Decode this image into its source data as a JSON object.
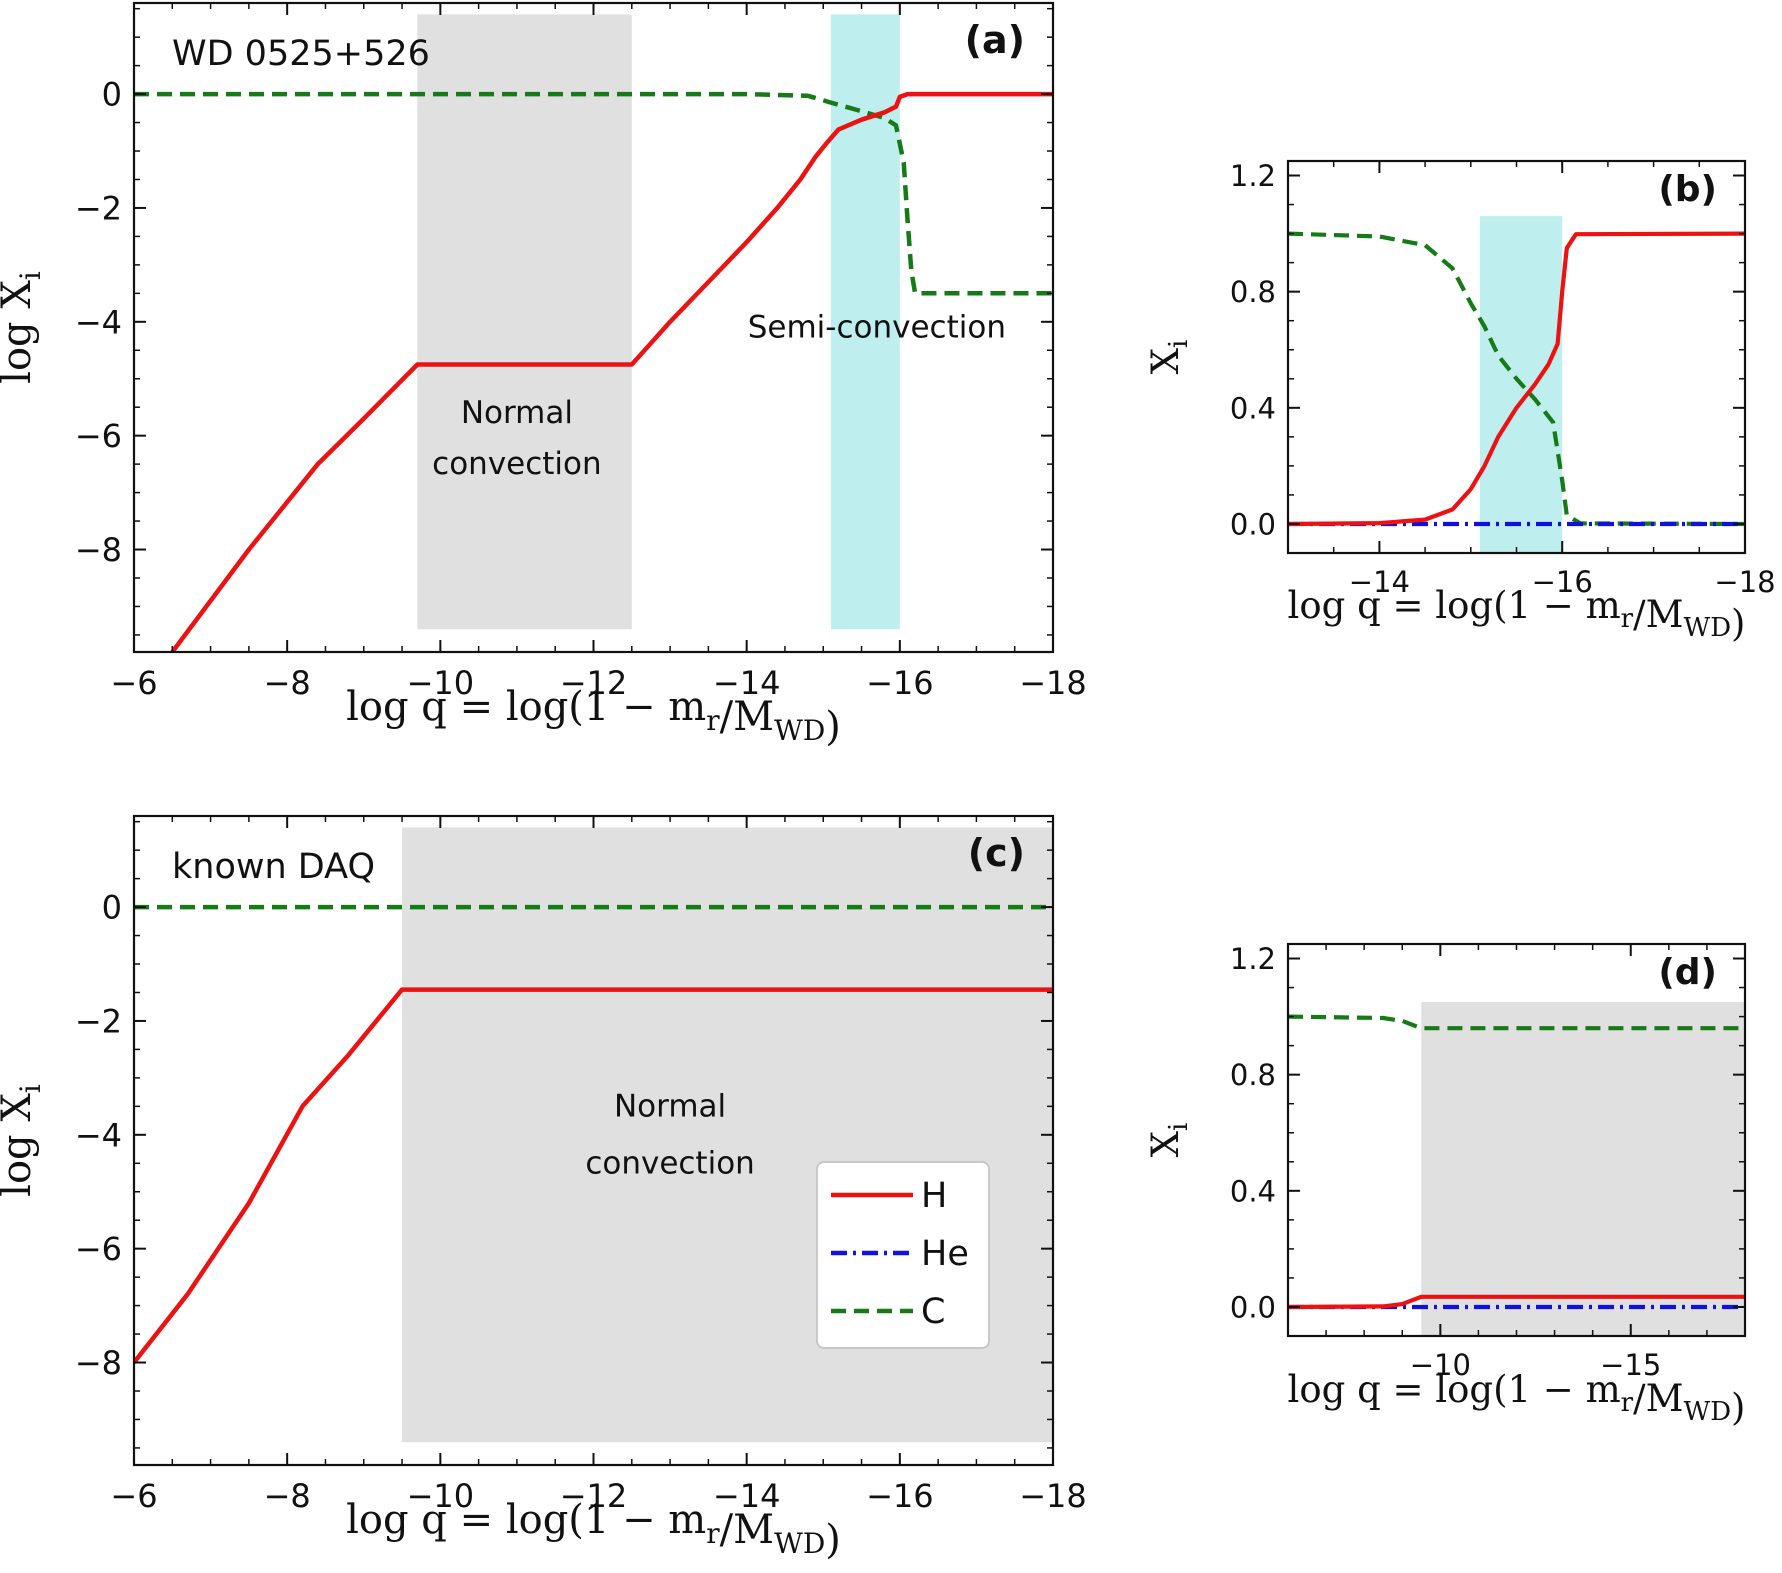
{
  "colors": {
    "H": "#ee1111",
    "He": "#1111dd",
    "C": "#167a16",
    "normal_convection": "#e0e0e0",
    "semi_convection": "#bfeeee",
    "axes": "#111111"
  },
  "legend": {
    "placement": "lower-right of panel (c)",
    "entries": [
      "H",
      "He",
      "C"
    ]
  },
  "chart_data": [
    {
      "panel": "(a)",
      "type": "line",
      "annotation": "WD 0525+526",
      "xlabel": "log q = log(1 − m_r/M_WD)",
      "ylabel": "log X_i",
      "xlim": [
        -6,
        -18
      ],
      "ylim": [
        -9.8,
        1.6
      ],
      "xticks": [
        "−6",
        "−8",
        "−10",
        "−12",
        "−14",
        "−16",
        "−18"
      ],
      "yticks": [
        "0",
        "−2",
        "−4",
        "−6",
        "−8"
      ],
      "xtick_values": [
        -6,
        -8,
        -10,
        -12,
        -14,
        -16,
        -18
      ],
      "ytick_values": [
        0,
        -2,
        -4,
        -6,
        -8
      ],
      "grid": false,
      "shaded_regions": [
        {
          "label": "Normal convection",
          "x": [
            -9.7,
            -12.5
          ],
          "y": [
            -9.4,
            1.4
          ],
          "kind": "normal"
        },
        {
          "label": "Semi-convection",
          "x": [
            -15.1,
            -16.0
          ],
          "y": [
            -9.4,
            1.4
          ],
          "kind": "semi"
        }
      ],
      "region_labels": [
        {
          "lines": [
            "Normal",
            "convection"
          ],
          "x": -11.0,
          "y": [
            -5.6,
            -6.5
          ]
        },
        {
          "lines": [
            "Semi-convection"
          ],
          "x": -15.7,
          "y": [
            -4.1
          ]
        }
      ],
      "series": [
        {
          "name": "H",
          "style": "solid",
          "points": [
            [
              -6.5,
              -9.8
            ],
            [
              -7.5,
              -8.0
            ],
            [
              -8.4,
              -6.5
            ],
            [
              -9.0,
              -5.7
            ],
            [
              -9.7,
              -4.75
            ],
            [
              -12.5,
              -4.75
            ],
            [
              -13.0,
              -4.0
            ],
            [
              -13.5,
              -3.3
            ],
            [
              -14.0,
              -2.6
            ],
            [
              -14.4,
              -2.0
            ],
            [
              -14.7,
              -1.5
            ],
            [
              -14.9,
              -1.1
            ],
            [
              -15.05,
              -0.85
            ],
            [
              -15.2,
              -0.62
            ],
            [
              -15.5,
              -0.45
            ],
            [
              -15.8,
              -0.32
            ],
            [
              -15.95,
              -0.22
            ],
            [
              -16.0,
              -0.05
            ],
            [
              -16.1,
              0
            ],
            [
              -18,
              0
            ]
          ]
        },
        {
          "name": "C",
          "style": "dashed",
          "points": [
            [
              -6,
              0
            ],
            [
              -14.0,
              0
            ],
            [
              -14.8,
              -0.03
            ],
            [
              -15.1,
              -0.15
            ],
            [
              -15.5,
              -0.3
            ],
            [
              -15.8,
              -0.42
            ],
            [
              -15.95,
              -0.55
            ],
            [
              -16.05,
              -1.2
            ],
            [
              -16.1,
              -2.2
            ],
            [
              -16.15,
              -3.1
            ],
            [
              -16.2,
              -3.5
            ],
            [
              -18,
              -3.5
            ]
          ]
        }
      ]
    },
    {
      "panel": "(b)",
      "type": "line",
      "xlabel": "log q = log(1 − m_r/M_WD)",
      "ylabel": "X_i",
      "xlim": [
        -13,
        -18
      ],
      "ylim": [
        -0.1,
        1.25
      ],
      "xticks": [
        "−14",
        "−16",
        "−18"
      ],
      "yticks": [
        "0.0",
        "0.4",
        "0.8",
        "1.2"
      ],
      "xtick_values": [
        -14,
        -16,
        -18
      ],
      "ytick_values": [
        0.0,
        0.4,
        0.8,
        1.2
      ],
      "grid": false,
      "shaded_regions": [
        {
          "x": [
            -15.1,
            -16.0
          ],
          "y": [
            -0.1,
            1.06
          ],
          "kind": "semi"
        }
      ],
      "series": [
        {
          "name": "H",
          "style": "solid",
          "points": [
            [
              -13,
              0
            ],
            [
              -14.0,
              0.003
            ],
            [
              -14.5,
              0.015
            ],
            [
              -14.8,
              0.05
            ],
            [
              -15.0,
              0.12
            ],
            [
              -15.15,
              0.2
            ],
            [
              -15.3,
              0.3
            ],
            [
              -15.5,
              0.4
            ],
            [
              -15.7,
              0.48
            ],
            [
              -15.85,
              0.55
            ],
            [
              -15.95,
              0.62
            ],
            [
              -16.0,
              0.8
            ],
            [
              -16.05,
              0.95
            ],
            [
              -16.15,
              0.998
            ],
            [
              -18,
              1.0
            ]
          ]
        },
        {
          "name": "He",
          "style": "dashdot",
          "points": [
            [
              -13,
              0
            ],
            [
              -18,
              0
            ]
          ]
        },
        {
          "name": "C",
          "style": "dashed",
          "points": [
            [
              -13,
              1.0
            ],
            [
              -14.0,
              0.99
            ],
            [
              -14.5,
              0.96
            ],
            [
              -14.8,
              0.88
            ],
            [
              -15.0,
              0.76
            ],
            [
              -15.15,
              0.68
            ],
            [
              -15.3,
              0.58
            ],
            [
              -15.5,
              0.5
            ],
            [
              -15.7,
              0.43
            ],
            [
              -15.9,
              0.35
            ],
            [
              -16.0,
              0.15
            ],
            [
              -16.05,
              0.03
            ],
            [
              -16.2,
              0.002
            ],
            [
              -18,
              0
            ]
          ]
        }
      ]
    },
    {
      "panel": "(c)",
      "type": "line",
      "annotation": "known DAQ",
      "xlabel": "log q = log(1 − m_r/M_WD)",
      "ylabel": "log X_i",
      "xlim": [
        -6,
        -18
      ],
      "ylim": [
        -9.8,
        1.6
      ],
      "xticks": [
        "−6",
        "−8",
        "−10",
        "−12",
        "−14",
        "−16",
        "−18"
      ],
      "yticks": [
        "0",
        "−2",
        "−4",
        "−6",
        "−8"
      ],
      "xtick_values": [
        -6,
        -8,
        -10,
        -12,
        -14,
        -16,
        -18
      ],
      "ytick_values": [
        0,
        -2,
        -4,
        -6,
        -8
      ],
      "grid": false,
      "shaded_regions": [
        {
          "label": "Normal convection",
          "x": [
            -9.5,
            -18
          ],
          "y": [
            -9.4,
            1.4
          ],
          "kind": "normal"
        }
      ],
      "region_labels": [
        {
          "lines": [
            "Normal",
            "convection"
          ],
          "x": -13.0,
          "y": [
            -3.5,
            -4.5
          ]
        }
      ],
      "series": [
        {
          "name": "H",
          "style": "solid",
          "points": [
            [
              -6,
              -8.0
            ],
            [
              -6.7,
              -6.8
            ],
            [
              -7.5,
              -5.2
            ],
            [
              -8.2,
              -3.5
            ],
            [
              -8.8,
              -2.6
            ],
            [
              -9.5,
              -1.45
            ],
            [
              -18,
              -1.45
            ]
          ]
        },
        {
          "name": "C",
          "style": "dashed",
          "points": [
            [
              -6,
              0
            ],
            [
              -18,
              0
            ]
          ]
        }
      ]
    },
    {
      "panel": "(d)",
      "type": "line",
      "xlabel": "log q = log(1 − m_r/M_WD)",
      "ylabel": "X_i",
      "xlim": [
        -6,
        -18
      ],
      "ylim": [
        -0.1,
        1.25
      ],
      "xticks": [
        "−10",
        "−15"
      ],
      "yticks": [
        "0.0",
        "0.4",
        "0.8",
        "1.2"
      ],
      "xtick_values": [
        -10,
        -15
      ],
      "ytick_values": [
        0.0,
        0.4,
        0.8,
        1.2
      ],
      "grid": false,
      "shaded_regions": [
        {
          "x": [
            -9.5,
            -18
          ],
          "y": [
            -0.1,
            1.05
          ],
          "kind": "normal"
        }
      ],
      "series": [
        {
          "name": "H",
          "style": "solid",
          "points": [
            [
              -6,
              0
            ],
            [
              -8.5,
              0.002
            ],
            [
              -9.0,
              0.01
            ],
            [
              -9.3,
              0.025
            ],
            [
              -9.5,
              0.035
            ],
            [
              -18,
              0.035
            ]
          ]
        },
        {
          "name": "He",
          "style": "dashdot",
          "points": [
            [
              -6,
              0
            ],
            [
              -18,
              0
            ]
          ]
        },
        {
          "name": "C",
          "style": "dashed",
          "points": [
            [
              -6,
              1.0
            ],
            [
              -8.5,
              0.995
            ],
            [
              -9.0,
              0.985
            ],
            [
              -9.3,
              0.97
            ],
            [
              -9.5,
              0.96
            ],
            [
              -18,
              0.96
            ]
          ]
        }
      ]
    }
  ]
}
